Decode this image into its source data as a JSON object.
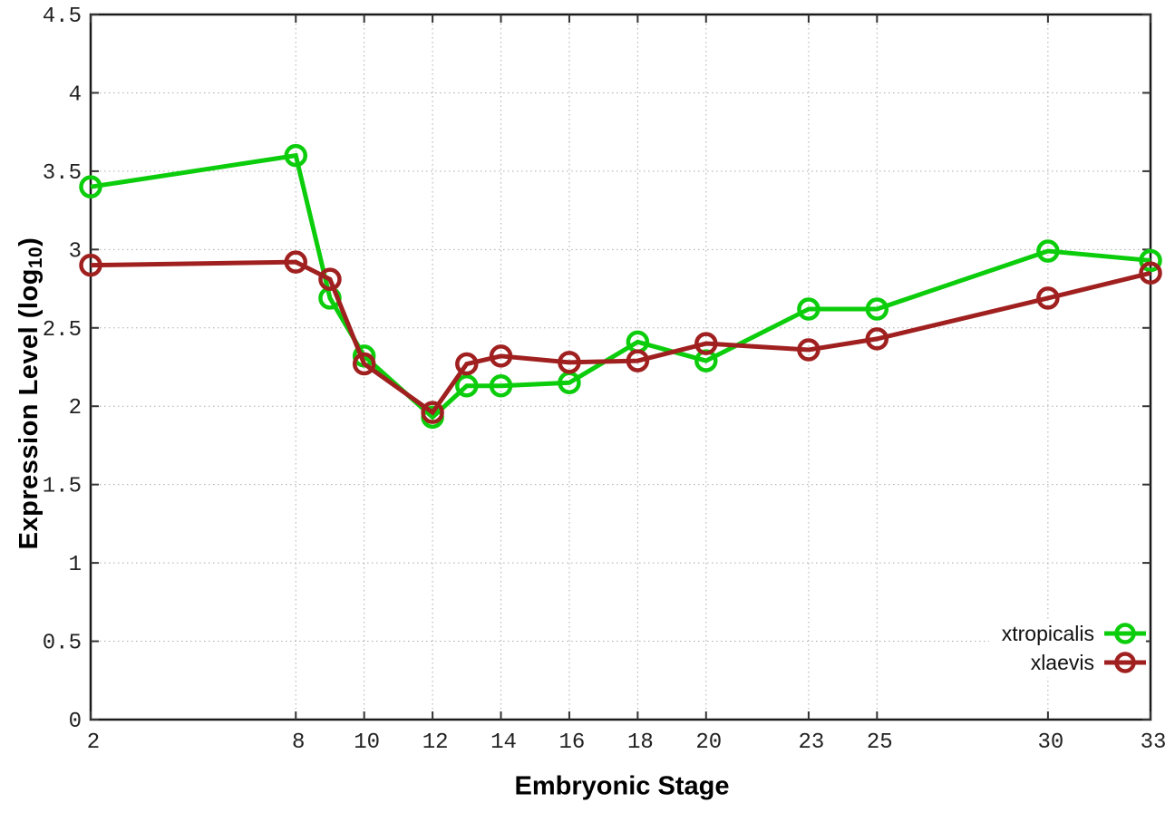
{
  "chart_data": {
    "type": "line",
    "title": "",
    "xlabel": "Embryonic Stage",
    "ylabel_prefix": "Expression Level (log",
    "ylabel_sub": "10",
    "ylabel_suffix": ")",
    "xlim": [
      2,
      33
    ],
    "ylim": [
      0,
      4.5
    ],
    "x_ticks": [
      2,
      8,
      10,
      12,
      14,
      16,
      18,
      20,
      23,
      25,
      30,
      33
    ],
    "y_ticks": [
      0,
      0.5,
      1,
      1.5,
      2,
      2.5,
      3,
      3.5,
      4,
      4.5
    ],
    "grid": true,
    "legend_position": "bottom-right",
    "x": [
      2,
      8,
      9,
      10,
      12,
      13,
      14,
      16,
      18,
      20,
      23,
      25,
      30,
      33
    ],
    "series": [
      {
        "name": "xtropicalis",
        "color": "#0ccd0c",
        "values": [
          3.4,
          3.6,
          2.69,
          2.32,
          1.93,
          2.13,
          2.13,
          2.15,
          2.41,
          2.29,
          2.62,
          2.62,
          2.99,
          2.93
        ]
      },
      {
        "name": "xlaevis",
        "color": "#a02020",
        "values": [
          2.9,
          2.92,
          2.81,
          2.27,
          1.96,
          2.27,
          2.32,
          2.28,
          2.29,
          2.4,
          2.36,
          2.43,
          2.69,
          2.85
        ]
      }
    ],
    "colors": {
      "grid": "#ababab",
      "axis": "#1a1a1a",
      "tick": "#333333"
    }
  }
}
